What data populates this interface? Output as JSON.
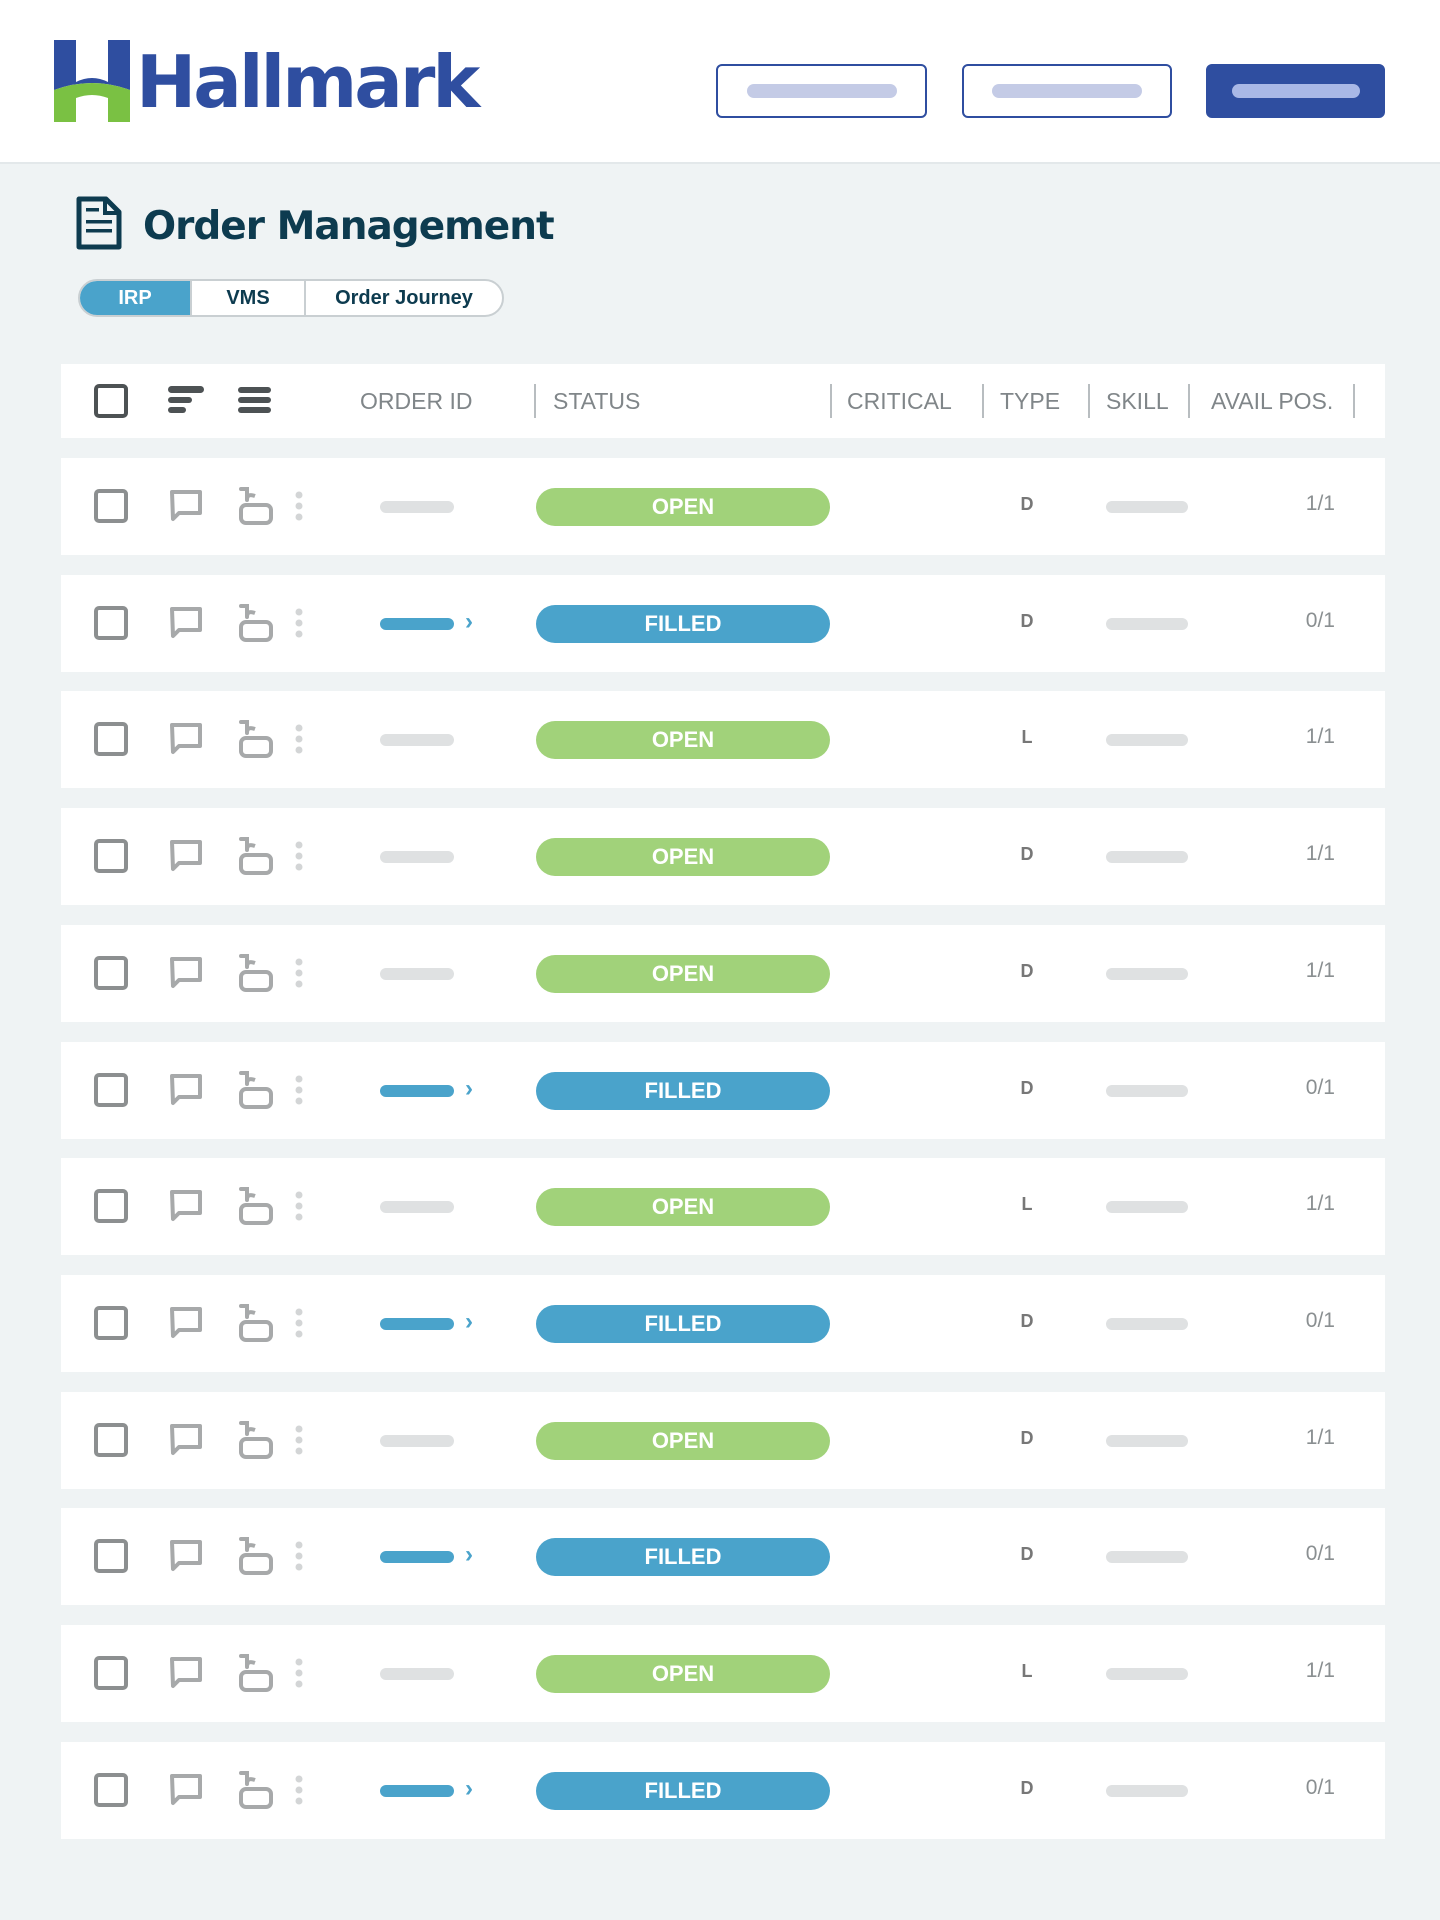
{
  "brand": {
    "name": "Hallmark",
    "primary": "#2f4ea0",
    "green": "#7ac143"
  },
  "header": {
    "buttons": [
      "outline-placeholder",
      "outline-placeholder",
      "primary-placeholder"
    ]
  },
  "page": {
    "title": "Order Management",
    "icon": "document-icon"
  },
  "tabs": [
    {
      "label": "IRP",
      "active": true
    },
    {
      "label": "VMS"
    },
    {
      "label": "Order Journey"
    }
  ],
  "table": {
    "columns": [
      "ORDER ID",
      "STATUS",
      "CRITICAL",
      "TYPE",
      "SKILL",
      "AVAIL POS."
    ],
    "status_colors": {
      "OPEN": "#a1d27a",
      "FILLED": "#4aa3cb"
    },
    "rows": [
      {
        "status": "OPEN",
        "type": "D",
        "avail": "1/1"
      },
      {
        "status": "FILLED",
        "type": "D",
        "avail": "0/1"
      },
      {
        "status": "OPEN",
        "type": "L",
        "avail": "1/1"
      },
      {
        "status": "OPEN",
        "type": "D",
        "avail": "1/1"
      },
      {
        "status": "OPEN",
        "type": "D",
        "avail": "1/1"
      },
      {
        "status": "FILLED",
        "type": "D",
        "avail": "0/1"
      },
      {
        "status": "OPEN",
        "type": "L",
        "avail": "1/1"
      },
      {
        "status": "FILLED",
        "type": "D",
        "avail": "0/1"
      },
      {
        "status": "OPEN",
        "type": "D",
        "avail": "1/1"
      },
      {
        "status": "FILLED",
        "type": "D",
        "avail": "0/1"
      },
      {
        "status": "OPEN",
        "type": "L",
        "avail": "1/1"
      },
      {
        "status": "FILLED",
        "type": "D",
        "avail": "0/1"
      }
    ]
  }
}
